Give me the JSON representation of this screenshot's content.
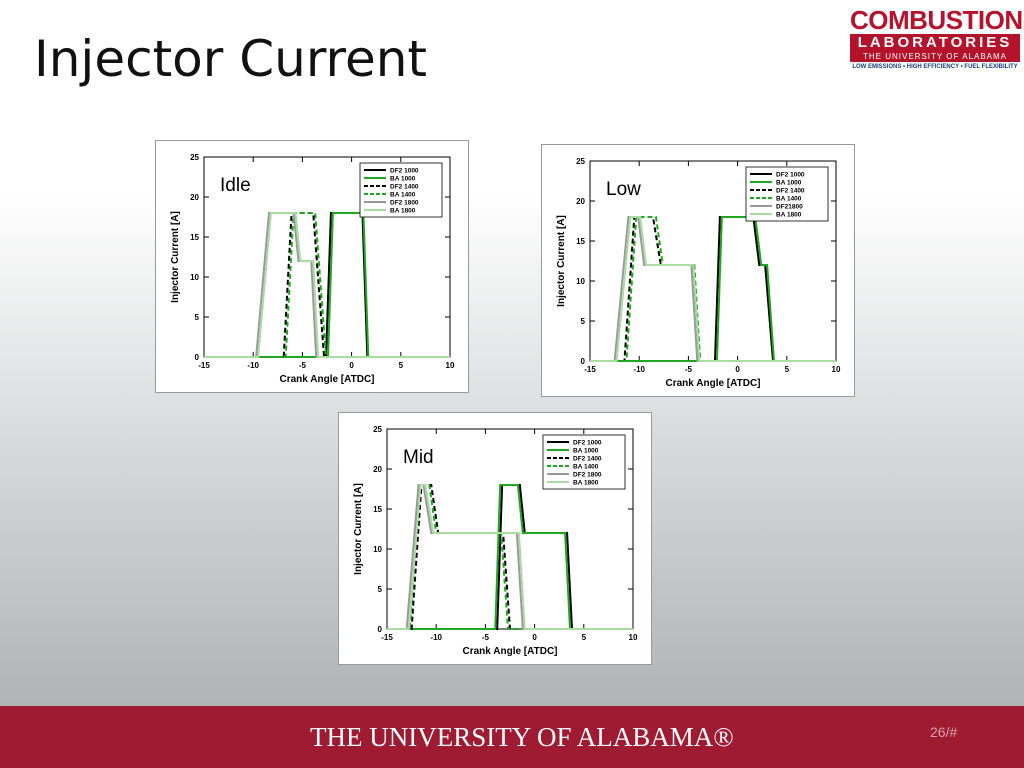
{
  "title": "Injector Current",
  "logo": {
    "name": "COMBUSTION",
    "sub": "LABORATORIES",
    "school": "THE UNIVERSITY OF ALABAMA",
    "motto": "LOW EMISSIONS • HIGH EFFICIENCY • FUEL FLEXIBILITY"
  },
  "footer": {
    "text": "THE UNIVERSITY OF ALABAMA®",
    "page": "26/#"
  },
  "chart_data": [
    {
      "type": "line",
      "annotation": "Idle",
      "xlabel": "Crank Angle [ATDC]",
      "ylabel": "Injector Current [A]",
      "xlim": [
        -15,
        10
      ],
      "ylim": [
        0,
        25
      ],
      "xticks": [
        -15,
        -10,
        -5,
        0,
        5,
        10
      ],
      "yticks": [
        0,
        5,
        10,
        15,
        20,
        25
      ],
      "legend": "upper right",
      "series": [
        {
          "name": "DF2 1000",
          "color": "#000000",
          "line_style": "solid",
          "x": [
            -15,
            -2.6,
            -2.1,
            1.1,
            1.6,
            10
          ],
          "values": [
            0,
            0,
            18,
            18,
            0,
            0
          ]
        },
        {
          "name": "BA 1000",
          "color": "#1fa81f",
          "line_style": "solid",
          "x": [
            -15,
            -2.4,
            -1.9,
            1.2,
            1.7,
            10
          ],
          "values": [
            0,
            0,
            18,
            18,
            0,
            0
          ]
        },
        {
          "name": "DF2 1400",
          "color": "#000000",
          "line_style": "dashed",
          "x": [
            -15,
            -6.9,
            -6.1,
            -3.9,
            -2.8,
            10
          ],
          "values": [
            0,
            0,
            18,
            18,
            0,
            0
          ]
        },
        {
          "name": "BA 1400",
          "color": "#1fa81f",
          "line_style": "dashed",
          "x": [
            -15,
            -6.7,
            -5.9,
            -3.7,
            -2.6,
            10
          ],
          "values": [
            0,
            0,
            18,
            18,
            0,
            0
          ]
        },
        {
          "name": "DF2 1800",
          "color": "#9a9a9a",
          "line_style": "solid",
          "x": [
            -15,
            -9.7,
            -8.4,
            -5.9,
            -5.4,
            -4.1,
            -3.6,
            10
          ],
          "values": [
            0,
            0,
            18,
            18,
            12,
            12,
            0,
            0
          ]
        },
        {
          "name": "BA 1800",
          "color": "#a8dca0",
          "line_style": "solid",
          "x": [
            -15,
            -9.5,
            -8.2,
            -5.7,
            -5.2,
            -3.9,
            -3.4,
            10
          ],
          "values": [
            0,
            0,
            18,
            18,
            12,
            12,
            0,
            0
          ]
        }
      ]
    },
    {
      "type": "line",
      "annotation": "Low",
      "xlabel": "Crank Angle [ATDC]",
      "ylabel": "Injector Current [A]",
      "xlim": [
        -15,
        10
      ],
      "ylim": [
        0,
        25
      ],
      "xticks": [
        -15,
        -10,
        -5,
        0,
        5,
        10
      ],
      "yticks": [
        0,
        5,
        10,
        15,
        20,
        25
      ],
      "legend": "upper right",
      "series": [
        {
          "name": "DF2 1000",
          "color": "#000000",
          "line_style": "solid",
          "x": [
            -15,
            -2.3,
            -1.8,
            1.6,
            2.2,
            2.8,
            3.6,
            10
          ],
          "values": [
            0,
            0,
            18,
            18,
            12,
            12,
            0,
            0
          ]
        },
        {
          "name": "BA 1000",
          "color": "#1fa81f",
          "line_style": "solid",
          "x": [
            -15,
            -2.1,
            -1.6,
            1.8,
            2.4,
            3.0,
            3.7,
            10
          ],
          "values": [
            0,
            0,
            18,
            18,
            12,
            12,
            0,
            0
          ]
        },
        {
          "name": "DF2 1400",
          "color": "#000000",
          "line_style": "dashed",
          "x": [
            -15,
            -11.5,
            -10.5,
            -8.6,
            -7.8,
            -4.6,
            -4.0,
            10
          ],
          "values": [
            0,
            0,
            18,
            18,
            12,
            12,
            0,
            0
          ]
        },
        {
          "name": "BA 1400",
          "color": "#1fa81f",
          "line_style": "dashed",
          "x": [
            -15,
            -11.3,
            -10.3,
            -8.3,
            -7.6,
            -4.4,
            -3.8,
            10
          ],
          "values": [
            0,
            0,
            18,
            18,
            12,
            12,
            0,
            0
          ]
        },
        {
          "name": "DF21800",
          "color": "#9a9a9a",
          "line_style": "solid",
          "x": [
            -15,
            -12.5,
            -11.1,
            -10.1,
            -9.5,
            -4.7,
            -4.1,
            10
          ],
          "values": [
            0,
            0,
            18,
            18,
            12,
            12,
            0,
            0
          ]
        },
        {
          "name": "BA 1800",
          "color": "#a8dca0",
          "line_style": "solid",
          "x": [
            -15,
            -12.3,
            -10.9,
            -9.9,
            -9.3,
            -4.5,
            -3.9,
            10
          ],
          "values": [
            0,
            0,
            18,
            18,
            12,
            12,
            0,
            0
          ]
        }
      ]
    },
    {
      "type": "line",
      "annotation": "Mid",
      "xlabel": "Crank Angle [ATDC]",
      "ylabel": "Injector Current [A]",
      "xlim": [
        -15,
        10
      ],
      "ylim": [
        0,
        25
      ],
      "xticks": [
        -15,
        -10,
        -5,
        0,
        5,
        10
      ],
      "yticks": [
        0,
        5,
        10,
        15,
        20,
        25
      ],
      "legend": "upper right",
      "series": [
        {
          "name": "DF2 1000",
          "color": "#000000",
          "line_style": "solid",
          "x": [
            -15,
            -3.8,
            -3.3,
            -1.5,
            -1.0,
            3.3,
            3.8,
            10
          ],
          "values": [
            0,
            0,
            18,
            18,
            12,
            12,
            0,
            0
          ]
        },
        {
          "name": "BA 1000",
          "color": "#1fa81f",
          "line_style": "solid",
          "x": [
            -15,
            -4.0,
            -3.5,
            -1.7,
            -1.2,
            3.1,
            3.6,
            10
          ],
          "values": [
            0,
            0,
            18,
            18,
            12,
            12,
            0,
            0
          ]
        },
        {
          "name": "DF2 1400",
          "color": "#000000",
          "line_style": "dashed",
          "x": [
            -15,
            -12.5,
            -11.5,
            -10.5,
            -9.8,
            -3.2,
            -2.5,
            10
          ],
          "values": [
            0,
            0,
            18,
            18,
            12,
            12,
            0,
            0
          ]
        },
        {
          "name": "BA 1400",
          "color": "#1fa81f",
          "line_style": "dashed",
          "x": [
            -15,
            -12.7,
            -11.7,
            -10.7,
            -10.0,
            -3.4,
            -2.7,
            10
          ],
          "values": [
            0,
            0,
            18,
            18,
            12,
            12,
            0,
            0
          ]
        },
        {
          "name": "DF2 1800",
          "color": "#9a9a9a",
          "line_style": "solid",
          "x": [
            -15,
            -13.0,
            -11.8,
            -11.3,
            -10.5,
            -1.8,
            -1.2,
            10
          ],
          "values": [
            0,
            0,
            18,
            18,
            12,
            12,
            0,
            0
          ]
        },
        {
          "name": "BA 1800",
          "color": "#a8dca0",
          "line_style": "solid",
          "x": [
            -15,
            -12.8,
            -11.6,
            -11.1,
            -10.3,
            -1.6,
            -1.0,
            10
          ],
          "values": [
            0,
            0,
            18,
            18,
            12,
            12,
            0,
            0
          ]
        }
      ]
    }
  ]
}
